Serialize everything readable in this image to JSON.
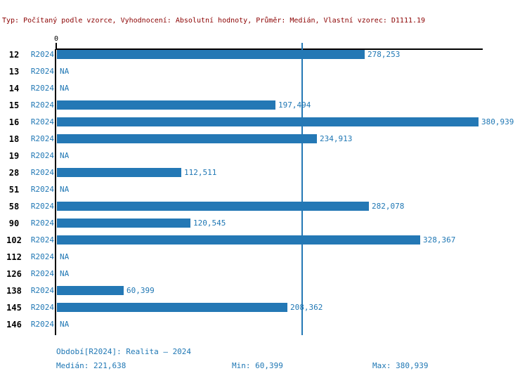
{
  "header": {
    "text": "Typ: Počítaný podle vzorce, Vyhodnocení: Absolutní hodnoty, Průměr: Medián, Vlastní vzorec: D1111.19"
  },
  "colors": {
    "bar": "#2478b5",
    "blue_text": "#1f77b4",
    "header_text": "#8b0000",
    "axis": "#000000"
  },
  "chart_data": {
    "type": "bar",
    "orientation": "horizontal",
    "title": "",
    "xlabel": "",
    "ylabel": "",
    "xlim": [
      0,
      380939
    ],
    "x_axis_zero_label": "0",
    "grid": false,
    "period_label": "R2024",
    "na_label": "NA",
    "median_line_value": 221638,
    "categories": [
      "12",
      "13",
      "14",
      "15",
      "16",
      "18",
      "19",
      "28",
      "51",
      "58",
      "90",
      "102",
      "112",
      "126",
      "138",
      "145",
      "146"
    ],
    "values": [
      278253,
      null,
      null,
      197494,
      380939,
      234913,
      null,
      112511,
      null,
      282078,
      120545,
      328367,
      null,
      null,
      60399,
      208362,
      null
    ],
    "value_labels": [
      "278,253",
      "NA",
      "NA",
      "197,494",
      "380,939",
      "234,913",
      "NA",
      "112,511",
      "NA",
      "282,078",
      "120,545",
      "328,367",
      "NA",
      "NA",
      "60,399",
      "208,362",
      "NA"
    ]
  },
  "footer": {
    "period_info": "Období[R2024]: Realita – 2024",
    "median": "Medián: 221,638",
    "min": "Min: 60,399",
    "max": "Max: 380,939"
  }
}
